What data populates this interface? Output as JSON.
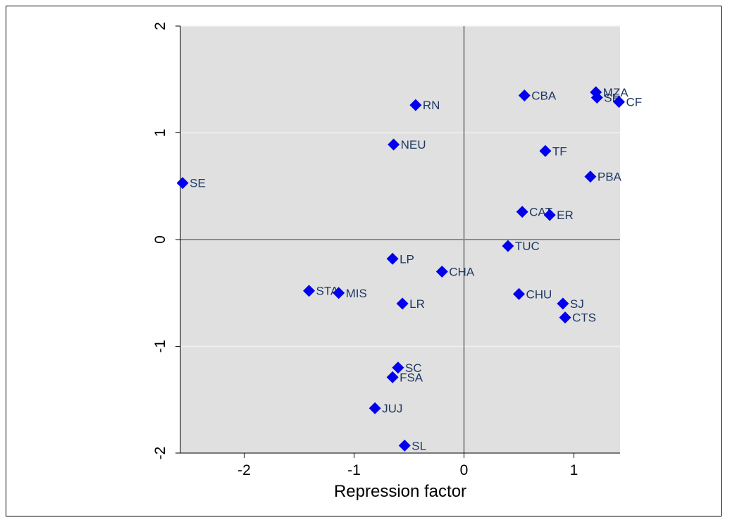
{
  "chart_data": {
    "type": "scatter",
    "xlabel": "Repression factor",
    "ylabel": "",
    "xlim": [
      -2.58,
      1.42
    ],
    "ylim": [
      -2,
      2
    ],
    "xticks": [
      -2,
      -1,
      0,
      1
    ],
    "yticks": [
      -2,
      -1,
      0,
      1,
      2
    ],
    "xtick_labels": [
      "-2",
      "-1",
      "0",
      "1"
    ],
    "ytick_labels": [
      "-2",
      "-1",
      "0",
      "1",
      "2"
    ],
    "grid": true,
    "reference_lines": {
      "x": 0,
      "y": 0
    },
    "colors": {
      "plot_bg": "#e0e0e0",
      "marker": "#0000ee",
      "label": "#1f3864",
      "grid": "#f2f2f2",
      "refline": "#8c8c8c"
    },
    "points": [
      {
        "label": "SE",
        "x": -2.56,
        "y": 0.53
      },
      {
        "label": "RN",
        "x": -0.44,
        "y": 1.26
      },
      {
        "label": "NEU",
        "x": -0.64,
        "y": 0.89
      },
      {
        "label": "CBA",
        "x": 0.55,
        "y": 1.35
      },
      {
        "label": "MZA",
        "x": 1.2,
        "y": 1.38
      },
      {
        "label": "SF",
        "x": 1.21,
        "y": 1.33
      },
      {
        "label": "CF",
        "x": 1.41,
        "y": 1.29
      },
      {
        "label": "TF",
        "x": 0.74,
        "y": 0.83
      },
      {
        "label": "PBA",
        "x": 1.15,
        "y": 0.59
      },
      {
        "label": "CAT",
        "x": 0.53,
        "y": 0.26
      },
      {
        "label": "ER",
        "x": 0.78,
        "y": 0.23
      },
      {
        "label": "TUC",
        "x": 0.4,
        "y": -0.06
      },
      {
        "label": "LP",
        "x": -0.65,
        "y": -0.18
      },
      {
        "label": "CHA",
        "x": -0.2,
        "y": -0.3
      },
      {
        "label": "STA",
        "x": -1.41,
        "y": -0.48
      },
      {
        "label": "MIS",
        "x": -1.14,
        "y": -0.5
      },
      {
        "label": "LR",
        "x": -0.56,
        "y": -0.6
      },
      {
        "label": "CHU",
        "x": 0.5,
        "y": -0.51
      },
      {
        "label": "SJ",
        "x": 0.9,
        "y": -0.6
      },
      {
        "label": "CTS",
        "x": 0.92,
        "y": -0.73
      },
      {
        "label": "SC",
        "x": -0.6,
        "y": -1.2
      },
      {
        "label": "FSA",
        "x": -0.65,
        "y": -1.29
      },
      {
        "label": "JUJ",
        "x": -0.81,
        "y": -1.58
      },
      {
        "label": "SL",
        "x": -0.54,
        "y": -1.93
      }
    ]
  }
}
